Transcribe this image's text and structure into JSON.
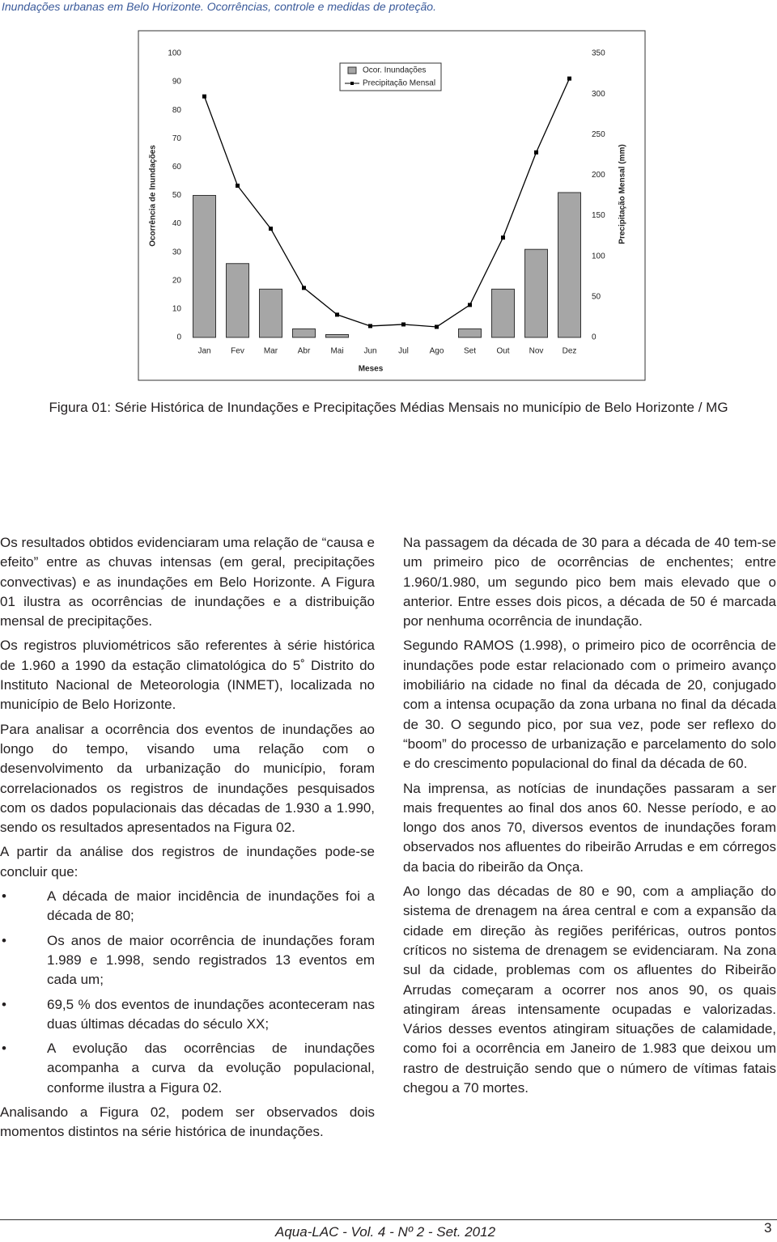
{
  "header": {
    "running_title": "Inundações urbanas em Belo Horizonte. Ocorrências, controle e medidas de proteção."
  },
  "chart_data": {
    "type": "bar-line",
    "xlabel": "Meses",
    "ylabel": "Ocorrência de Inundações",
    "y2label": "Precipitação Mensal (mm)",
    "categories": [
      "Jan",
      "Fev",
      "Mar",
      "Abr",
      "Mai",
      "Jun",
      "Jul",
      "Ago",
      "Set",
      "Out",
      "Nov",
      "Dez"
    ],
    "series": [
      {
        "name": "Ocor. Inundações",
        "type": "bar",
        "color": "#a6a6a6",
        "values": [
          50,
          26,
          17,
          3,
          1,
          0,
          0,
          0,
          3,
          17,
          31,
          51
        ]
      },
      {
        "name": "Precipitação Mensal",
        "type": "line",
        "axis": "y2",
        "color": "#000000",
        "values": [
          297,
          187,
          134,
          61,
          28,
          14,
          16,
          13,
          40,
          123,
          228,
          319
        ]
      }
    ],
    "ylim": [
      0,
      100
    ],
    "yticks": [
      0,
      10,
      20,
      30,
      40,
      50,
      60,
      70,
      80,
      90,
      100
    ],
    "y2lim": [
      0,
      350
    ],
    "y2ticks": [
      0,
      50,
      100,
      150,
      200,
      250,
      300,
      350
    ],
    "legend": "top"
  },
  "caption": "Figura 01: Série Histórica de Inundações e Precipitações Médias Mensais no município de Belo Horizonte / MG",
  "left_column": {
    "paragraphs_before": [
      "Os resultados obtidos evidenciaram uma relação de “causa e efeito” entre as chuvas intensas (em geral, precipitações convectivas) e as inundações em Belo Horizonte. A Figura 01 ilustra as ocorrências de inundações e a distribuição mensal de precipitações.",
      "Os registros pluviométricos são referentes à série histórica de 1.960 a 1990 da estação climatológica do 5˚ Distrito do Instituto Nacional de Meteorologia (INMET), localizada no município de Belo Horizonte.",
      "Para analisar a ocorrência dos eventos de inundações ao longo do tempo, visando uma relação com o desenvolvimento da urbanização do município, foram correlacionados os registros de inundações pesquisados com os dados populacionais das décadas de 1.930 a 1.990, sendo os resultados apresentados na Figura 02.",
      "A partir da análise dos registros de inundações pode-se concluir que:"
    ],
    "bullets": [
      "A década de maior incidência de inundações foi a década de 80;",
      "Os anos de maior ocorrência de inundações foram 1.989 e 1.998, sendo registrados 13 eventos em cada um;",
      "69,5 % dos eventos de inundações aconteceram nas duas últimas décadas do século XX;",
      "A evolução das ocorrências de inundações acompanha a curva da evolução populacional, conforme ilustra a Figura 02."
    ],
    "paragraphs_after": [
      "Analisando a Figura 02, podem ser observados dois momentos distintos na série histórica de inundações."
    ]
  },
  "right_column": {
    "paragraphs": [
      "Na passagem da década de 30 para a década de 40 tem-se um primeiro pico de ocorrências de enchentes; entre 1.960/1.980, um segundo pico bem mais elevado que o anterior. Entre esses dois picos, a década de 50 é marcada por nenhuma ocorrência de inundação.",
      "Segundo RAMOS (1.998), o primeiro pico de ocorrência de inundações pode estar relacionado com o primeiro avanço imobiliário na cidade no final da década de 20, conjugado com a intensa ocupação da zona urbana no final da década de 30. O segundo pico, por sua vez, pode ser reflexo do “boom” do processo de urbanização e parcelamento do solo e do crescimento populacional do final da década de 60.",
      "Na imprensa, as notícias de inundações passaram a ser mais frequentes ao final dos anos 60. Nesse período, e ao longo dos anos 70, diversos eventos de inundações foram observados nos afluentes do ribeirão Arrudas e em córregos da bacia do ribeirão da Onça.",
      "Ao longo das décadas de 80 e 90, com a ampliação do sistema de drenagem na área central e com a expansão da cidade em direção às regiões periféricas, outros pontos críticos no sistema de drenagem se evidenciaram. Na zona sul da cidade, problemas com os afluentes do Ribeirão Arrudas começaram a ocorrer nos anos 90, os quais atingiram áreas intensamente ocupadas e valorizadas. Vários desses eventos atingiram situações de calamidade, como foi a ocorrência em Janeiro de 1.983 que deixou um rastro de destruição sendo que o número de vítimas fatais chegou a 70 mortes."
    ]
  },
  "footer": {
    "journal": "Aqua-LAC - Vol. 4 - Nº 2 - Set. 2012",
    "page": "3"
  }
}
